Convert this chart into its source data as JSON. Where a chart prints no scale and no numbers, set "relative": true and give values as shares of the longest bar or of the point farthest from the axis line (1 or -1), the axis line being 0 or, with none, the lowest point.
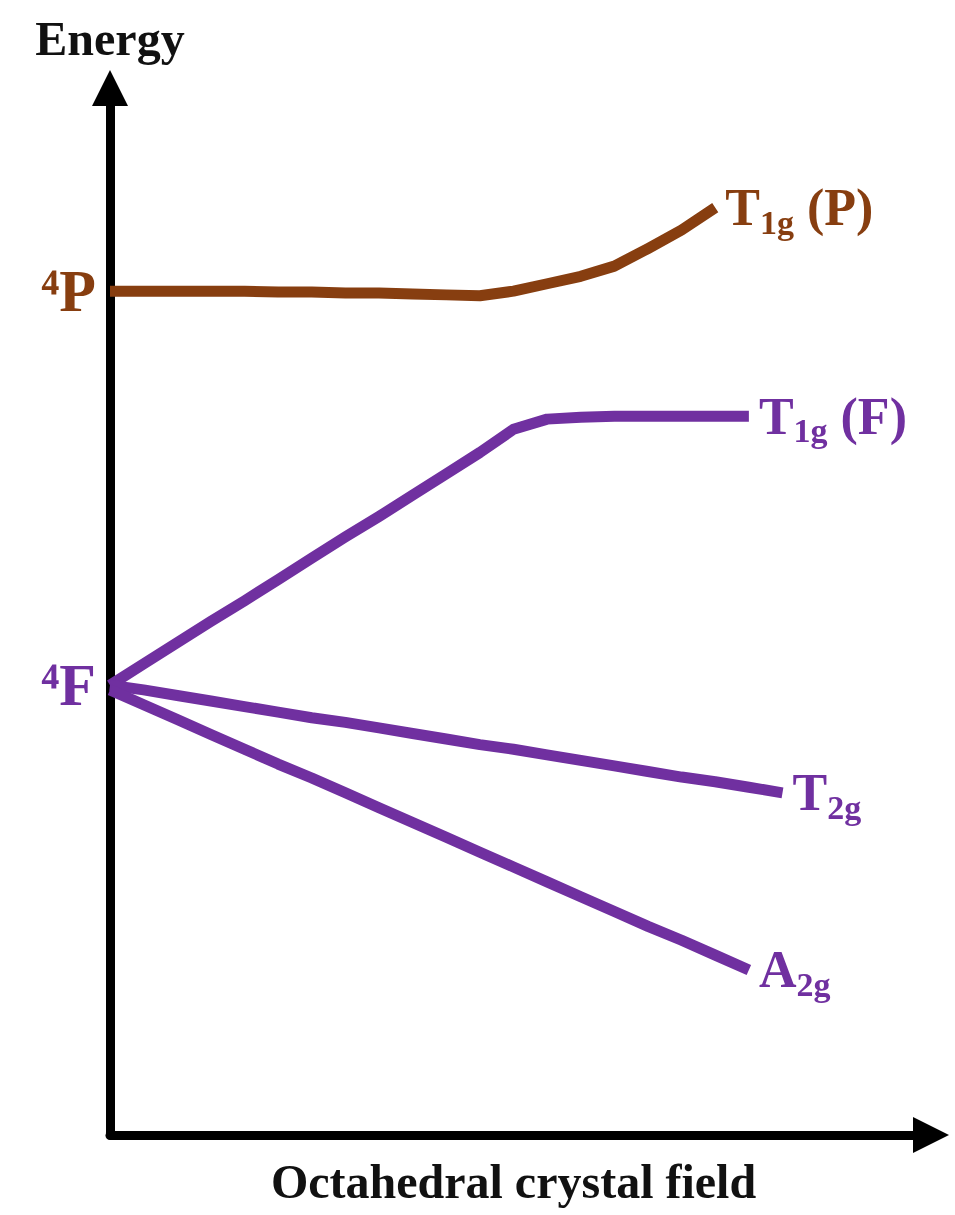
{
  "chart_data": {
    "type": "line",
    "relative": true,
    "xlabel": "Octahedral crystal field",
    "ylabel": "Energy",
    "marker": "none",
    "legend": false,
    "grid": false,
    "categories": [
      null,
      null,
      null,
      null,
      null,
      null,
      null,
      null,
      null,
      null,
      null,
      null,
      null,
      null,
      null,
      null,
      null,
      null,
      null,
      null,
      null,
      null,
      null,
      null,
      null
    ],
    "series": [
      {
        "name": "T$_{1g}$ (P)",
        "color": "#873e10",
        "values": [
          0.91,
          0.91,
          0.91,
          0.91,
          0.91,
          0.909,
          0.909,
          0.908,
          0.908,
          0.907,
          0.906,
          0.905,
          0.91,
          0.918,
          0.926,
          0.937,
          0.956,
          0.976,
          1,
          null,
          null,
          null,
          null,
          null,
          null
        ]
      },
      {
        "name": "T$_{1g}$ (F)",
        "color": "#7030a0",
        "values": [
          0.485,
          0.508,
          0.531,
          0.554,
          0.576,
          0.599,
          0.622,
          0.645,
          0.667,
          0.69,
          0.713,
          0.736,
          0.761,
          0.772,
          0.774,
          0.775,
          0.775,
          0.775,
          0.775,
          0.775,
          null,
          null,
          null,
          null,
          null
        ]
      },
      {
        "name": "T$_{2g}$",
        "color": "#7030a0",
        "values": [
          0.485,
          0.48,
          0.474,
          0.468,
          0.462,
          0.456,
          0.45,
          0.445,
          0.439,
          0.433,
          0.427,
          0.421,
          0.416,
          0.41,
          0.404,
          0.398,
          0.392,
          0.386,
          0.381,
          0.375,
          0.369,
          null,
          null,
          null,
          null
        ]
      },
      {
        "name": "A$_{2g}$",
        "color": "#7030a0",
        "values": [
          0.48,
          0.464,
          0.448,
          0.432,
          0.416,
          0.4,
          0.385,
          0.369,
          0.353,
          0.337,
          0.321,
          0.305,
          0.289,
          0.273,
          0.257,
          0.241,
          0.225,
          0.21,
          0.194,
          0.178,
          null,
          null,
          null,
          null,
          null
        ]
      }
    ],
    "annotations": [
      "⁴P",
      "⁴F"
    ]
  }
}
